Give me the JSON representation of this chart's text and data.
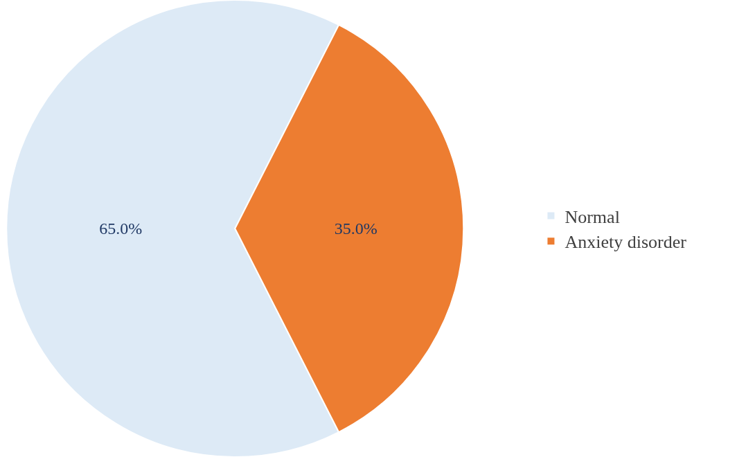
{
  "chart_data": {
    "type": "pie",
    "categories": [
      "Normal",
      "Anxiety disorder"
    ],
    "values": [
      65.0,
      35.0
    ],
    "value_labels": [
      "65.0%",
      "35.0%"
    ],
    "colors": [
      "#ddeaf6",
      "#ed7d31"
    ],
    "legend": "right"
  }
}
